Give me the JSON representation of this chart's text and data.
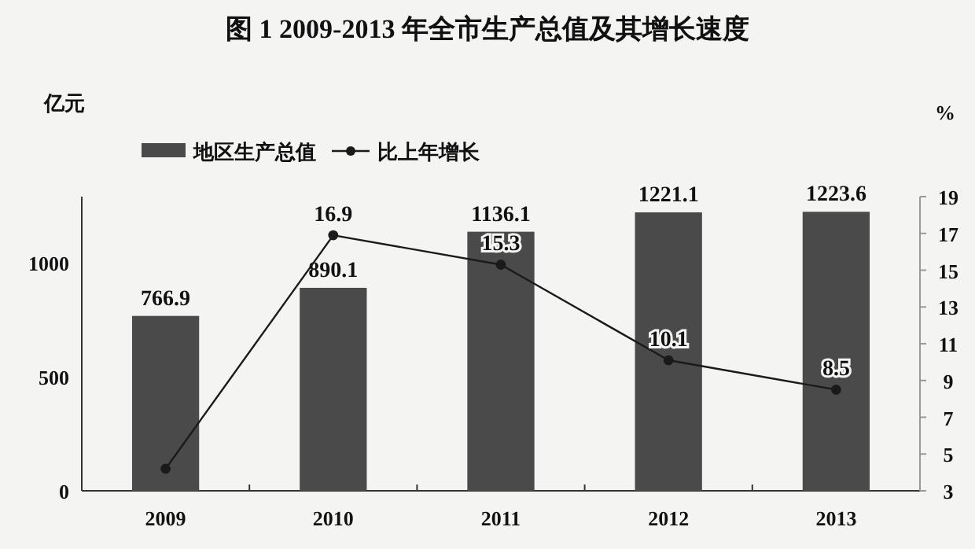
{
  "chart_data": {
    "type": "bar",
    "title": "图 1  2009-2013 年全市生产总值及其增长速度",
    "ylabel": "亿元",
    "y2label": "%",
    "categories": [
      "2009",
      "2010",
      "2011",
      "2012",
      "2013"
    ],
    "series": [
      {
        "name": "地区生产总值",
        "color": "#4a4a4a",
        "values": [
          766.9,
          890.1,
          1136.1,
          1221.1,
          1223.6
        ],
        "value_labels": [
          "766.9",
          "890.1",
          "1136.1",
          "1221.1",
          "1223.6"
        ]
      },
      {
        "name": "比上年增长",
        "type": "line",
        "axis": "y2",
        "color": "#1a1a1a",
        "marker": "circle",
        "values": [
          4.2,
          16.9,
          15.3,
          10.1,
          8.5
        ],
        "value_labels": [
          null,
          "16.9",
          "15.3",
          "10.1",
          "8.5"
        ]
      }
    ],
    "ylim": [
      0,
      1290
    ],
    "yticks": [
      0,
      500,
      1000
    ],
    "y2lim": [
      3,
      19
    ],
    "y2ticks": [
      3,
      5,
      7,
      9,
      11,
      13,
      15,
      17,
      19
    ],
    "legend": "top"
  }
}
